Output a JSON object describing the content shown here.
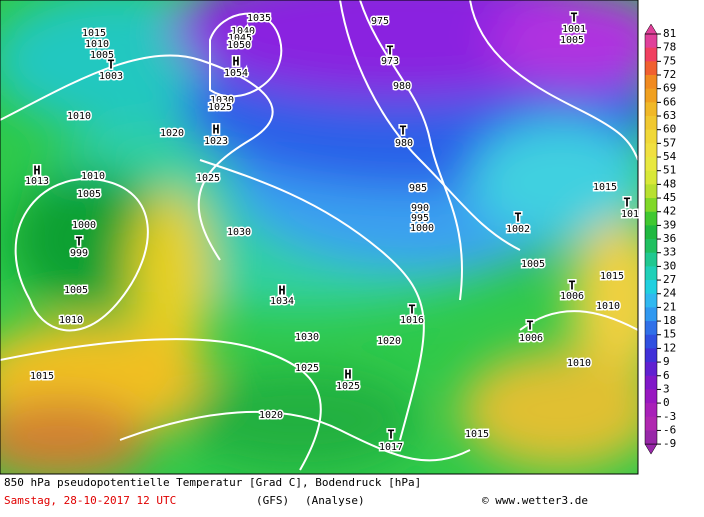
{
  "map": {
    "labels": [
      "1035",
      "1040",
      "1045",
      "1050",
      "H",
      "1054",
      "1030",
      "1025",
      "975",
      "T",
      "973",
      "980",
      "T",
      "980",
      "T",
      "1001",
      "1005",
      "1015",
      "1010",
      "1005",
      "T",
      "1003",
      "1010",
      "1020",
      "H",
      "1023",
      "H",
      "1013",
      "1010",
      "1005",
      "1000",
      "T",
      "999",
      "1005",
      "1010",
      "1025",
      "1015",
      "985",
      "990",
      "995",
      "1000",
      "T",
      "1002",
      "T",
      "101",
      "1030",
      "1005",
      "1015",
      "H",
      "1034",
      "T",
      "1006",
      "1010",
      "T",
      "1016",
      "T",
      "1006",
      "1030",
      "1020",
      "1015",
      "1025",
      "1010",
      "H",
      "1025",
      "1020",
      "1015",
      "T",
      "1017"
    ]
  },
  "colorbar": {
    "ticks": [
      "81",
      "78",
      "75",
      "72",
      "69",
      "66",
      "63",
      "60",
      "57",
      "54",
      "51",
      "48",
      "45",
      "42",
      "39",
      "36",
      "33",
      "30",
      "27",
      "24",
      "21",
      "18",
      "15",
      "12",
      "9",
      "6",
      "3",
      "0",
      "-3",
      "-6",
      "-9"
    ]
  },
  "footer": {
    "title": "850 hPa pseudopotentielle Temperatur [Grad C], Bodendruck [hPa]",
    "date": "Samstag, 28-10-2017  12 UTC",
    "model": "(GFS)",
    "run": "(Analyse)",
    "credit": "© www.wetter3.de"
  }
}
